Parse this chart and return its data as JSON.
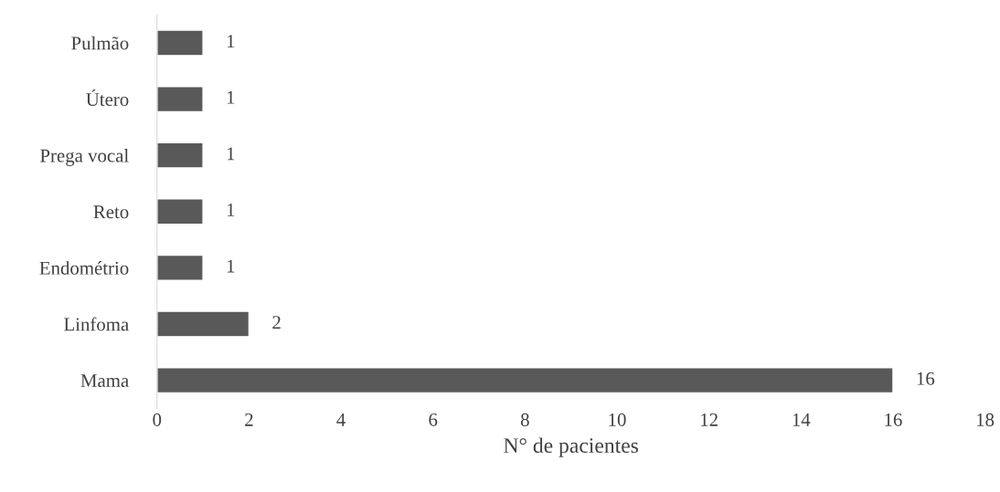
{
  "chart_data": {
    "type": "bar",
    "orientation": "horizontal",
    "xlabel": "N° de pacientes",
    "categories": [
      "Pulmão",
      "Útero",
      "Prega vocal",
      "Reto",
      "Endométrio",
      "Linfoma",
      "Mama"
    ],
    "values": [
      1,
      1,
      1,
      1,
      1,
      2,
      16
    ],
    "color": "#595959",
    "xlim": [
      0,
      18
    ],
    "xticks": [
      0,
      2,
      4,
      6,
      8,
      10,
      12,
      14,
      16,
      18
    ],
    "grid": false,
    "data_labels": true
  }
}
